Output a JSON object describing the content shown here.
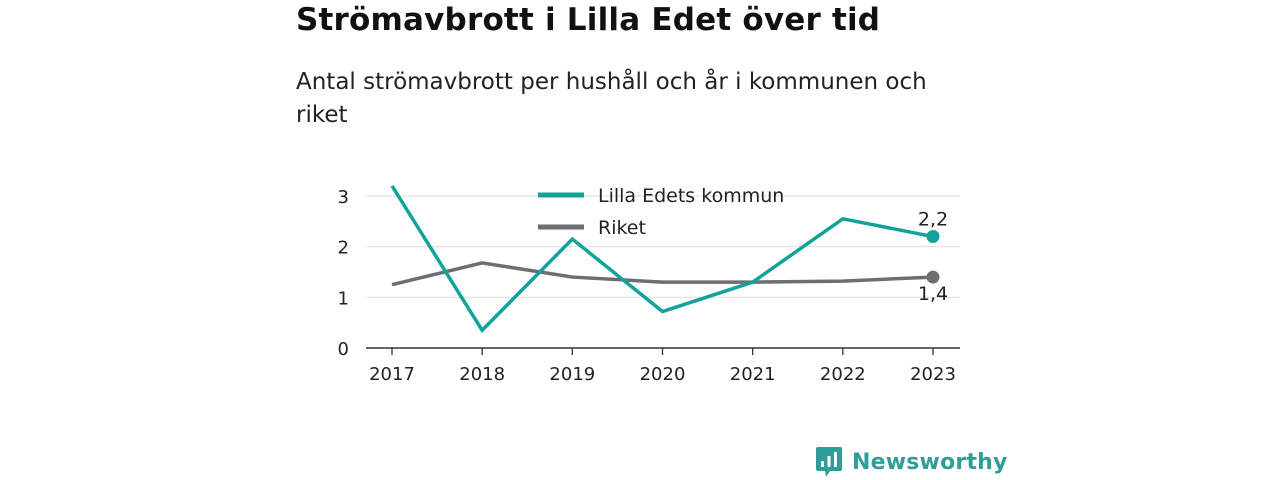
{
  "title": "Strömavbrott i Lilla Edet över tid",
  "subtitle": "Antal strömavbrott per hushåll och år i kommunen och riket",
  "brand": {
    "name": "Newsworthy",
    "color": "#2f9e9a"
  },
  "chart_data": {
    "type": "line",
    "x": [
      "2017",
      "2018",
      "2019",
      "2020",
      "2021",
      "2022",
      "2023"
    ],
    "ylim": [
      0,
      3.2
    ],
    "yticks": [
      "0",
      "1",
      "2",
      "3"
    ],
    "grid": true,
    "legend_position": "top-center",
    "series": [
      {
        "name": "Lilla Edets kommun",
        "color": "#11a39a",
        "values": [
          3.2,
          0.35,
          2.15,
          0.72,
          1.3,
          2.55,
          2.2
        ],
        "end_label": "2,2"
      },
      {
        "name": "Riket",
        "color": "#6d6d72",
        "values": [
          1.25,
          1.68,
          1.4,
          1.3,
          1.3,
          1.32,
          1.4
        ],
        "end_label": "1,4"
      }
    ]
  }
}
